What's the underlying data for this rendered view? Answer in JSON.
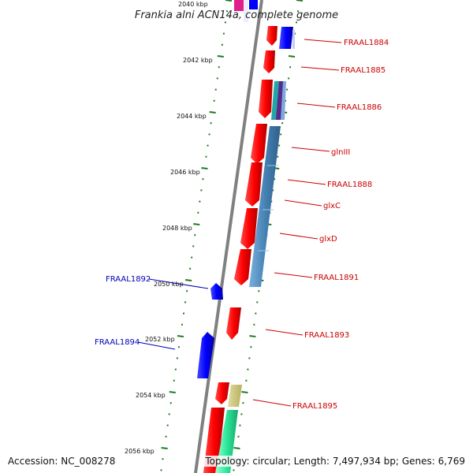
{
  "title": "Frankia alni ACN14a, complete genome",
  "footer": {
    "accession": "Accession: NC_008278",
    "topology": "Topology: circular; Length: 7,497,934 bp; Genes: 6,769"
  },
  "colors": {
    "backbone": "#808080",
    "tick": "#1f7a1f",
    "forward_gene": "#ff0000",
    "reverse_gene": "#0000ff",
    "red_label": "#cc0000",
    "blue_label": "#0000bb"
  },
  "kbp_labels": [
    {
      "text": "2040 kbp"
    },
    {
      "text": "2042 kbp"
    },
    {
      "text": "2044 kbp"
    },
    {
      "text": "2046 kbp"
    },
    {
      "text": "2048 kbp"
    },
    {
      "text": "2050 kbp"
    },
    {
      "text": "2052 kbp"
    },
    {
      "text": "2054 kbp"
    },
    {
      "text": "2056 kbp"
    }
  ],
  "gene_labels_right": [
    {
      "text": "FRAAL1884"
    },
    {
      "text": "FRAAL1885"
    },
    {
      "text": "FRAAL1886"
    },
    {
      "text": "glnIII"
    },
    {
      "text": "FRAAL1888"
    },
    {
      "text": "glxC"
    },
    {
      "text": "glxD"
    },
    {
      "text": "FRAAL1891"
    },
    {
      "text": "FRAAL1893"
    },
    {
      "text": "FRAAL1895"
    }
  ],
  "gene_labels_left": [
    {
      "text": "FRAAL1892"
    },
    {
      "text": "FRAAL1894"
    }
  ]
}
